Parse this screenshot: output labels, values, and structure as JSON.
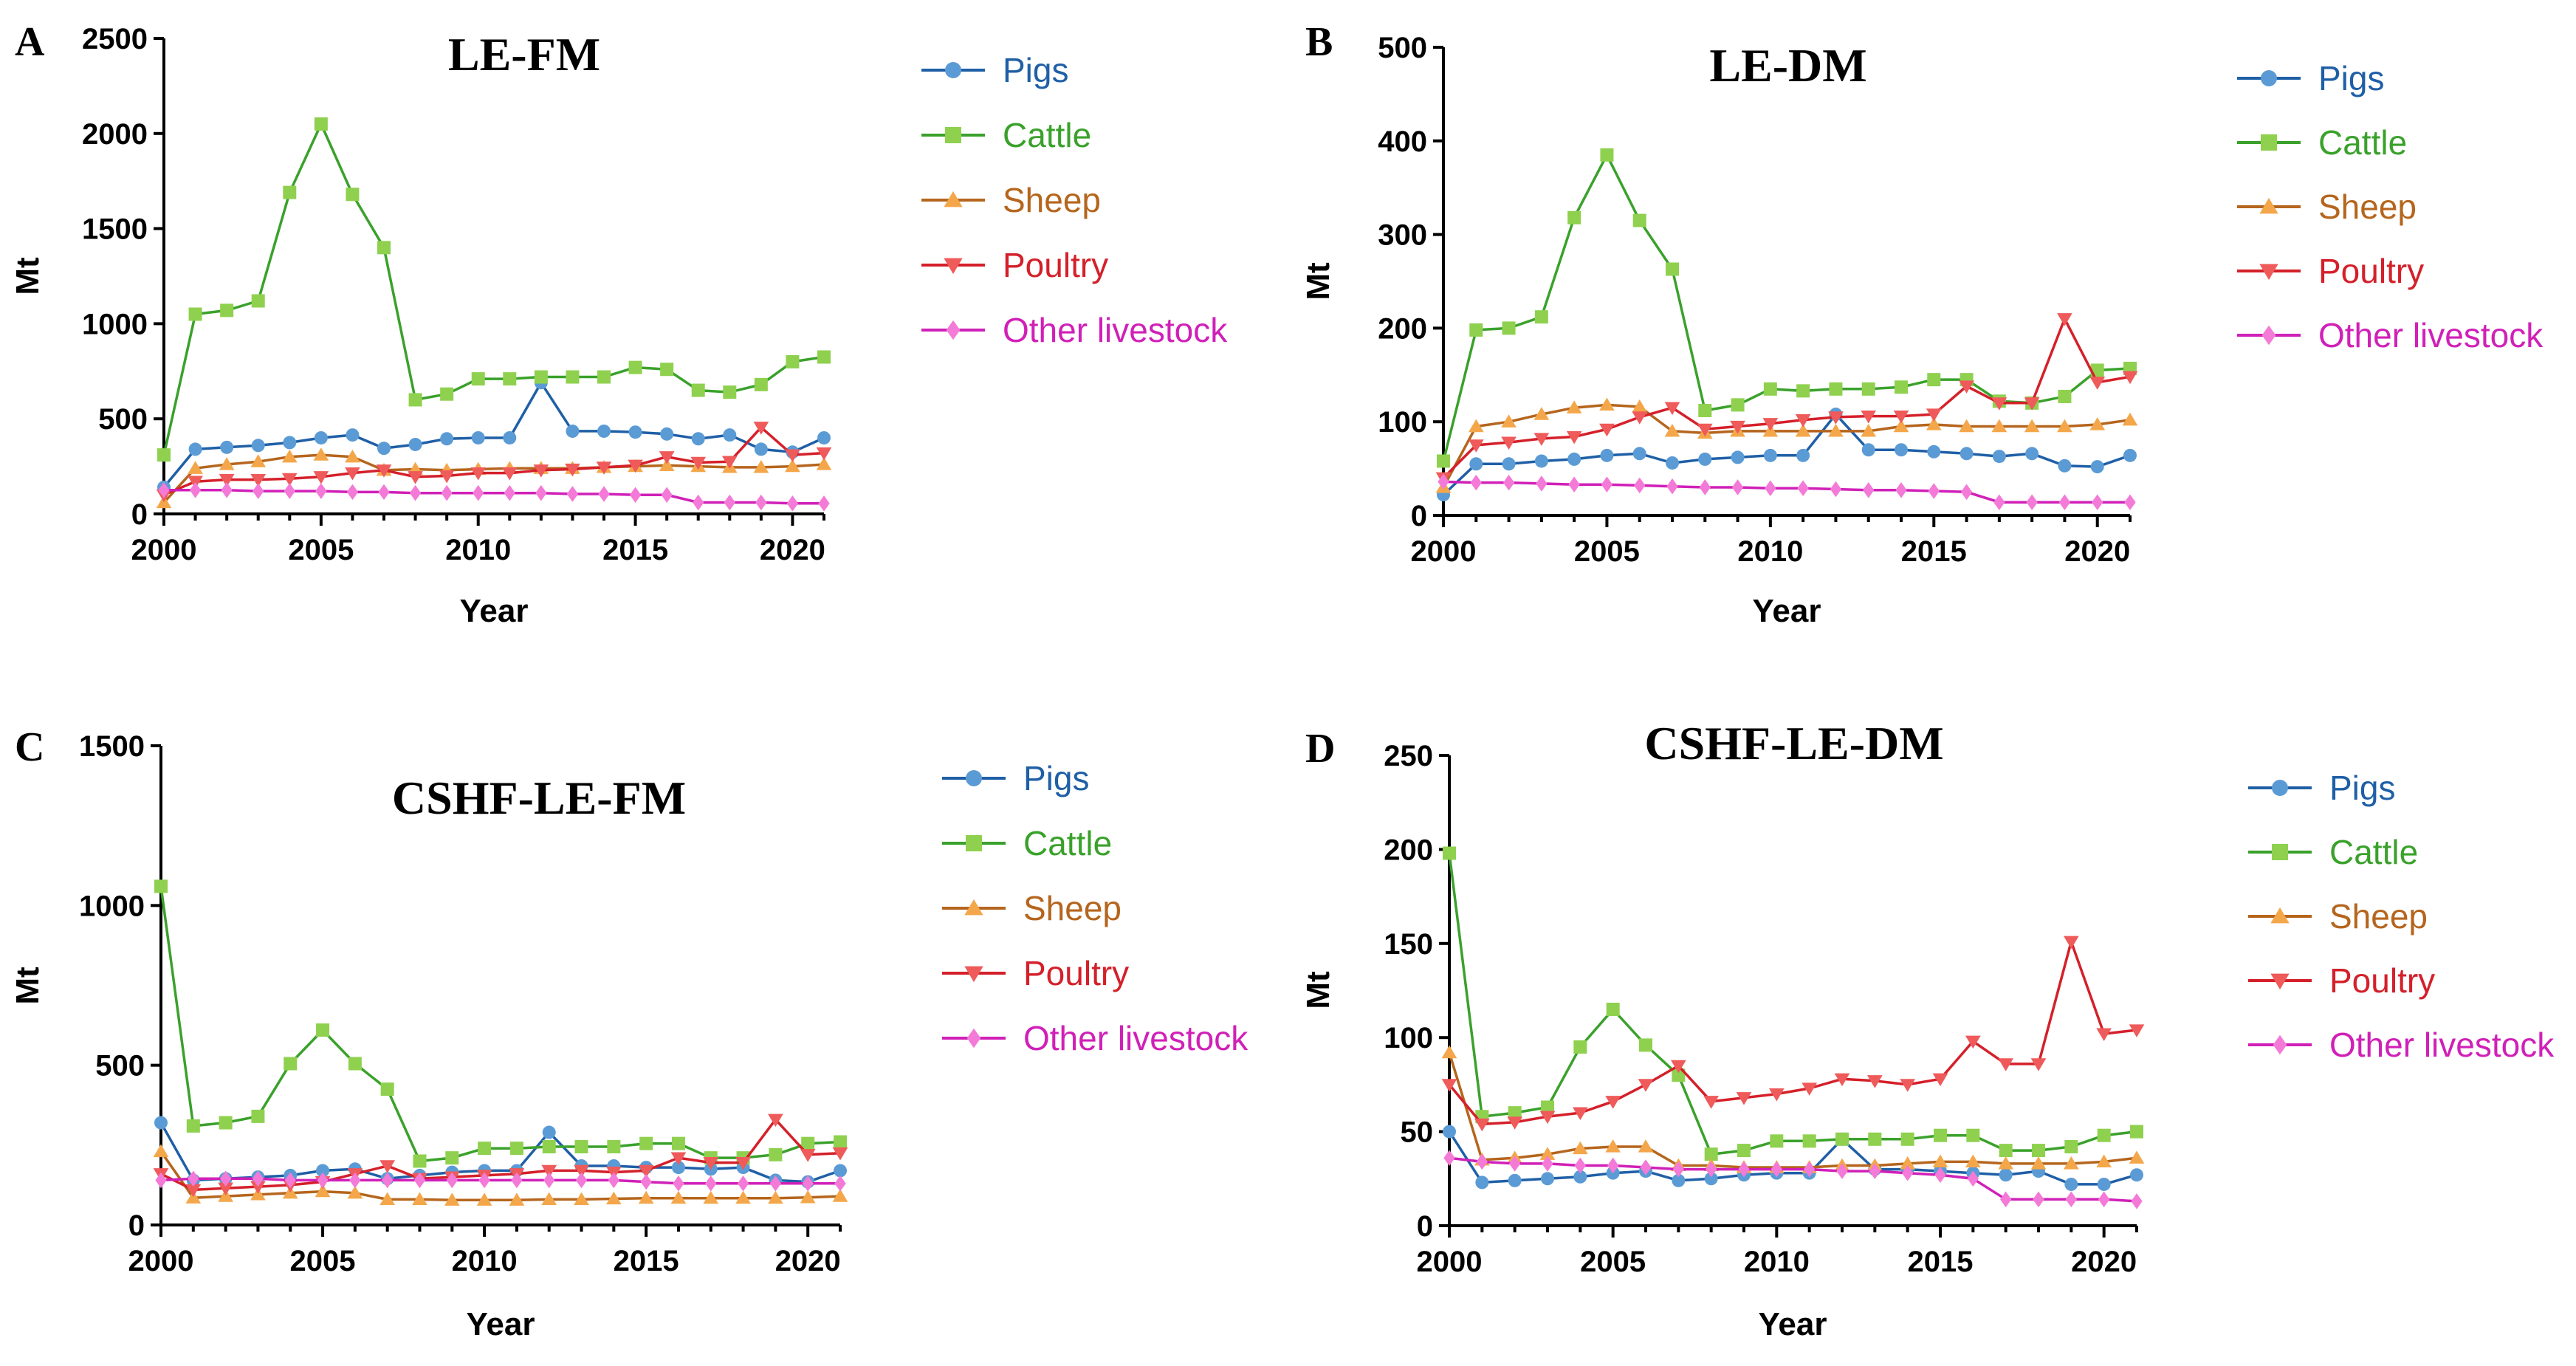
{
  "chart_data": [
    {
      "panel_letter": "A",
      "title": "LE-FM",
      "type": "line",
      "xlabel": "Year",
      "ylabel": "Mt",
      "xlim": [
        2000,
        2021
      ],
      "ylim": [
        0,
        2500
      ],
      "x_ticks": [
        "2000",
        "2005",
        "2010",
        "2015",
        "2020"
      ],
      "y_ticks": [
        "0",
        "500",
        "1000",
        "1500",
        "2000",
        "2500"
      ],
      "x": [
        2000,
        2001,
        2002,
        2003,
        2004,
        2005,
        2006,
        2007,
        2008,
        2009,
        2010,
        2011,
        2012,
        2013,
        2014,
        2015,
        2016,
        2017,
        2018,
        2019,
        2020,
        2021
      ],
      "series": [
        {
          "name": "Pigs",
          "values": [
            140,
            340,
            350,
            360,
            375,
            400,
            415,
            345,
            365,
            395,
            400,
            400,
            690,
            435,
            435,
            430,
            420,
            395,
            415,
            340,
            325,
            400
          ]
        },
        {
          "name": "Cattle",
          "values": [
            310,
            1050,
            1070,
            1120,
            1690,
            2050,
            1680,
            1400,
            600,
            630,
            710,
            710,
            720,
            720,
            720,
            770,
            760,
            650,
            640,
            680,
            800,
            825
          ]
        },
        {
          "name": "Sheep",
          "values": [
            60,
            240,
            260,
            275,
            300,
            310,
            300,
            230,
            235,
            230,
            235,
            240,
            240,
            240,
            245,
            250,
            255,
            250,
            245,
            245,
            250,
            260
          ]
        },
        {
          "name": "Poultry",
          "values": [
            100,
            170,
            180,
            180,
            185,
            195,
            215,
            230,
            195,
            200,
            215,
            215,
            230,
            235,
            245,
            255,
            300,
            270,
            275,
            455,
            310,
            320
          ]
        },
        {
          "name": "Other livestock",
          "values": [
            125,
            125,
            125,
            120,
            120,
            120,
            115,
            115,
            110,
            110,
            110,
            110,
            110,
            105,
            105,
            100,
            100,
            60,
            60,
            60,
            55,
            55
          ]
        }
      ]
    },
    {
      "panel_letter": "B",
      "title": "LE-DM",
      "type": "line",
      "xlabel": "Year",
      "ylabel": "Mt",
      "xlim": [
        2000,
        2021
      ],
      "ylim": [
        0,
        500
      ],
      "x_ticks": [
        "2000",
        "2005",
        "2010",
        "2015",
        "2020"
      ],
      "y_ticks": [
        "0",
        "100",
        "200",
        "300",
        "400",
        "500"
      ],
      "x": [
        2000,
        2001,
        2002,
        2003,
        2004,
        2005,
        2006,
        2007,
        2008,
        2009,
        2010,
        2011,
        2012,
        2013,
        2014,
        2015,
        2016,
        2017,
        2018,
        2019,
        2020,
        2021
      ],
      "series": [
        {
          "name": "Pigs",
          "values": [
            22,
            55,
            55,
            58,
            60,
            64,
            66,
            56,
            60,
            62,
            64,
            64,
            108,
            70,
            70,
            68,
            66,
            63,
            66,
            53,
            52,
            64
          ]
        },
        {
          "name": "Cattle",
          "values": [
            58,
            198,
            200,
            212,
            318,
            385,
            315,
            263,
            112,
            118,
            135,
            133,
            135,
            135,
            137,
            145,
            145,
            122,
            120,
            127,
            155,
            157
          ]
        },
        {
          "name": "Sheep",
          "values": [
            30,
            95,
            100,
            108,
            115,
            118,
            116,
            90,
            88,
            90,
            90,
            90,
            90,
            90,
            95,
            97,
            95,
            95,
            95,
            95,
            97,
            102
          ]
        },
        {
          "name": "Poultry",
          "values": [
            40,
            75,
            78,
            82,
            84,
            92,
            105,
            115,
            92,
            95,
            98,
            102,
            105,
            106,
            106,
            108,
            138,
            120,
            120,
            210,
            142,
            148
          ]
        },
        {
          "name": "Other livestock",
          "values": [
            36,
            35,
            35,
            34,
            33,
            33,
            32,
            31,
            30,
            30,
            29,
            29,
            28,
            27,
            27,
            26,
            25,
            14,
            14,
            14,
            14,
            14
          ]
        }
      ]
    },
    {
      "panel_letter": "C",
      "title": "CSHF-LE-FM",
      "type": "line",
      "xlabel": "Year",
      "ylabel": "Mt",
      "xlim": [
        2000,
        2021
      ],
      "ylim": [
        0,
        1500
      ],
      "x_ticks": [
        "2000",
        "2005",
        "2010",
        "2015",
        "2020"
      ],
      "y_ticks": [
        "0",
        "500",
        "1000",
        "1500"
      ],
      "x": [
        2000,
        2001,
        2002,
        2003,
        2004,
        2005,
        2006,
        2007,
        2008,
        2009,
        2010,
        2011,
        2012,
        2013,
        2014,
        2015,
        2016,
        2017,
        2018,
        2019,
        2020,
        2021
      ],
      "series": [
        {
          "name": "Pigs",
          "values": [
            320,
            140,
            145,
            150,
            155,
            170,
            175,
            145,
            155,
            165,
            170,
            170,
            290,
            185,
            185,
            180,
            180,
            175,
            180,
            140,
            135,
            170
          ]
        },
        {
          "name": "Cattle",
          "values": [
            1060,
            310,
            320,
            340,
            505,
            610,
            505,
            425,
            200,
            210,
            240,
            240,
            245,
            245,
            245,
            255,
            255,
            210,
            210,
            220,
            255,
            260
          ]
        },
        {
          "name": "Sheep",
          "values": [
            230,
            85,
            90,
            95,
            100,
            105,
            100,
            80,
            80,
            78,
            78,
            78,
            80,
            80,
            82,
            84,
            84,
            84,
            84,
            84,
            86,
            90
          ]
        },
        {
          "name": "Poultry",
          "values": [
            160,
            110,
            115,
            120,
            125,
            135,
            160,
            185,
            145,
            150,
            155,
            160,
            170,
            170,
            165,
            170,
            210,
            195,
            195,
            330,
            220,
            225
          ]
        },
        {
          "name": "Other livestock",
          "values": [
            140,
            145,
            145,
            145,
            140,
            140,
            140,
            140,
            140,
            140,
            140,
            140,
            140,
            140,
            140,
            135,
            130,
            130,
            130,
            130,
            130,
            130
          ]
        }
      ]
    },
    {
      "panel_letter": "D",
      "title": "CSHF-LE-DM",
      "type": "line",
      "xlabel": "Year",
      "ylabel": "Mt",
      "xlim": [
        2000,
        2021
      ],
      "ylim": [
        0,
        250
      ],
      "x_ticks": [
        "2000",
        "2005",
        "2010",
        "2015",
        "2020"
      ],
      "y_ticks": [
        "0",
        "50",
        "100",
        "150",
        "200",
        "250"
      ],
      "x": [
        2000,
        2001,
        2002,
        2003,
        2004,
        2005,
        2006,
        2007,
        2008,
        2009,
        2010,
        2011,
        2012,
        2013,
        2014,
        2015,
        2016,
        2017,
        2018,
        2019,
        2020,
        2021
      ],
      "series": [
        {
          "name": "Pigs",
          "values": [
            50,
            23,
            24,
            25,
            26,
            28,
            29,
            24,
            25,
            27,
            28,
            28,
            46,
            30,
            30,
            29,
            28,
            27,
            29,
            22,
            22,
            27
          ]
        },
        {
          "name": "Cattle",
          "values": [
            198,
            58,
            60,
            63,
            95,
            115,
            96,
            80,
            38,
            40,
            45,
            45,
            46,
            46,
            46,
            48,
            48,
            40,
            40,
            42,
            48,
            50
          ]
        },
        {
          "name": "Sheep",
          "values": [
            92,
            35,
            36,
            38,
            41,
            42,
            42,
            32,
            32,
            31,
            31,
            31,
            32,
            32,
            33,
            34,
            34,
            33,
            33,
            33,
            34,
            36
          ]
        },
        {
          "name": "Poultry",
          "values": [
            75,
            54,
            55,
            58,
            60,
            66,
            75,
            85,
            66,
            68,
            70,
            73,
            78,
            77,
            75,
            78,
            98,
            86,
            86,
            151,
            102,
            104
          ]
        },
        {
          "name": "Other livestock",
          "values": [
            36,
            34,
            33,
            33,
            32,
            32,
            31,
            30,
            30,
            30,
            30,
            30,
            29,
            29,
            28,
            27,
            25,
            14,
            14,
            14,
            14,
            13
          ]
        }
      ]
    }
  ],
  "legend": {
    "entries": [
      {
        "name": "Pigs",
        "color": "#1f5fa6",
        "marker_color": "#5b9bd5",
        "marker": "circle"
      },
      {
        "name": "Cattle",
        "color": "#3aa12b",
        "marker_color": "#8fd14f",
        "marker": "square"
      },
      {
        "name": "Sheep",
        "color": "#b5651d",
        "marker_color": "#f4a74a",
        "marker": "triangle-up"
      },
      {
        "name": "Poultry",
        "color": "#d4202a",
        "marker_color": "#ef5a5a",
        "marker": "triangle-down"
      },
      {
        "name": "Other livestock",
        "color": "#d020b8",
        "marker_color": "#f47ad8",
        "marker": "diamond"
      }
    ]
  }
}
